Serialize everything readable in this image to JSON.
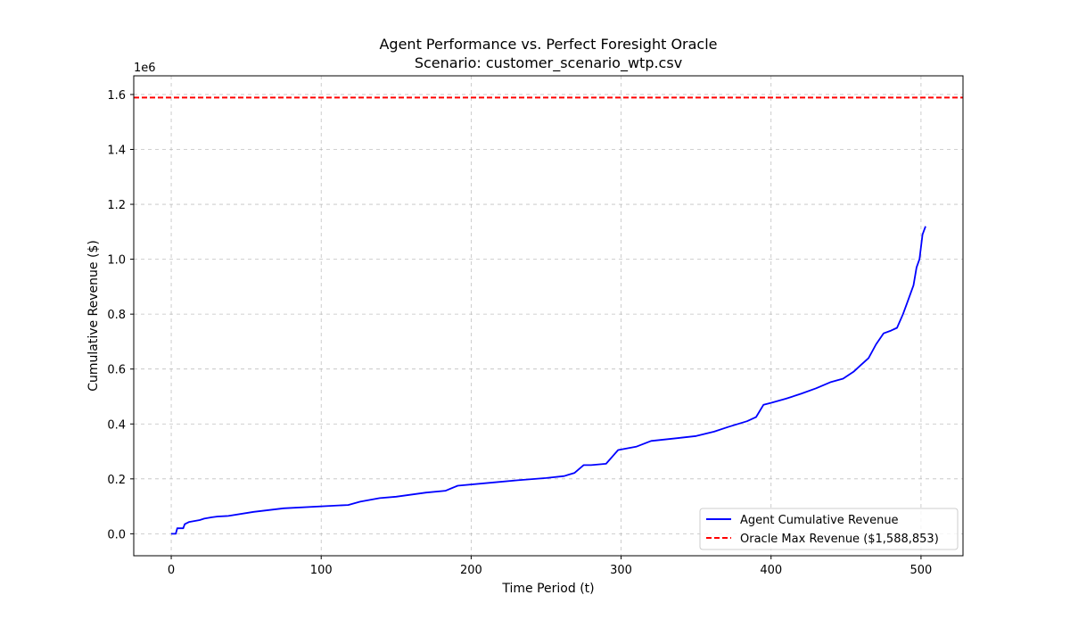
{
  "chart_data": {
    "type": "line",
    "title": "Agent Performance vs. Perfect Foresight Oracle",
    "subtitle": "Scenario: customer_scenario_wtp.csv",
    "xlabel": "Time Period (t)",
    "ylabel": "Cumulative Revenue ($)",
    "y_offset_label": "1e6",
    "xlim": [
      -25,
      528
    ],
    "ylim": [
      -0.08,
      1.668
    ],
    "xticks": [
      0,
      100,
      200,
      300,
      400,
      500
    ],
    "yticks": [
      0.0,
      0.2,
      0.4,
      0.6,
      0.8,
      1.0,
      1.2,
      1.4,
      1.6
    ],
    "xtick_labels": [
      "0",
      "100",
      "200",
      "300",
      "400",
      "500"
    ],
    "ytick_labels": [
      "0.0",
      "0.2",
      "0.4",
      "0.6",
      "0.8",
      "1.0",
      "1.2",
      "1.4",
      "1.6"
    ],
    "grid": true,
    "legend_position": "lower-right",
    "series": [
      {
        "name": "Agent Cumulative Revenue",
        "style": "solid",
        "color": "#0000ff",
        "x": [
          0,
          3,
          4,
          8,
          9,
          12,
          19,
          22,
          27,
          31,
          38,
          55,
          75,
          118,
          126,
          139,
          150,
          170,
          183,
          191,
          215,
          231,
          250,
          262,
          269,
          275,
          280,
          290,
          298,
          310,
          320,
          340,
          350,
          362,
          372,
          384,
          390,
          395,
          400,
          410,
          420,
          430,
          440,
          448,
          455,
          460,
          465,
          470,
          475,
          480,
          484,
          488,
          491,
          495,
          497,
          499,
          501,
          503
        ],
        "y": [
          0.0,
          0.0,
          0.02,
          0.02,
          0.035,
          0.043,
          0.05,
          0.055,
          0.06,
          0.063,
          0.065,
          0.08,
          0.093,
          0.105,
          0.117,
          0.13,
          0.135,
          0.15,
          0.157,
          0.175,
          0.187,
          0.195,
          0.203,
          0.21,
          0.222,
          0.25,
          0.25,
          0.255,
          0.305,
          0.317,
          0.338,
          0.35,
          0.356,
          0.372,
          0.39,
          0.41,
          0.425,
          0.47,
          0.477,
          0.492,
          0.51,
          0.53,
          0.553,
          0.565,
          0.59,
          0.615,
          0.64,
          0.69,
          0.73,
          0.74,
          0.75,
          0.8,
          0.845,
          0.905,
          0.97,
          1.0,
          1.09,
          1.12
        ]
      },
      {
        "name": "Oracle Max Revenue ($1,588,853)",
        "style": "dashed",
        "color": "#ff0000",
        "y_constant": 1.588853
      }
    ]
  }
}
